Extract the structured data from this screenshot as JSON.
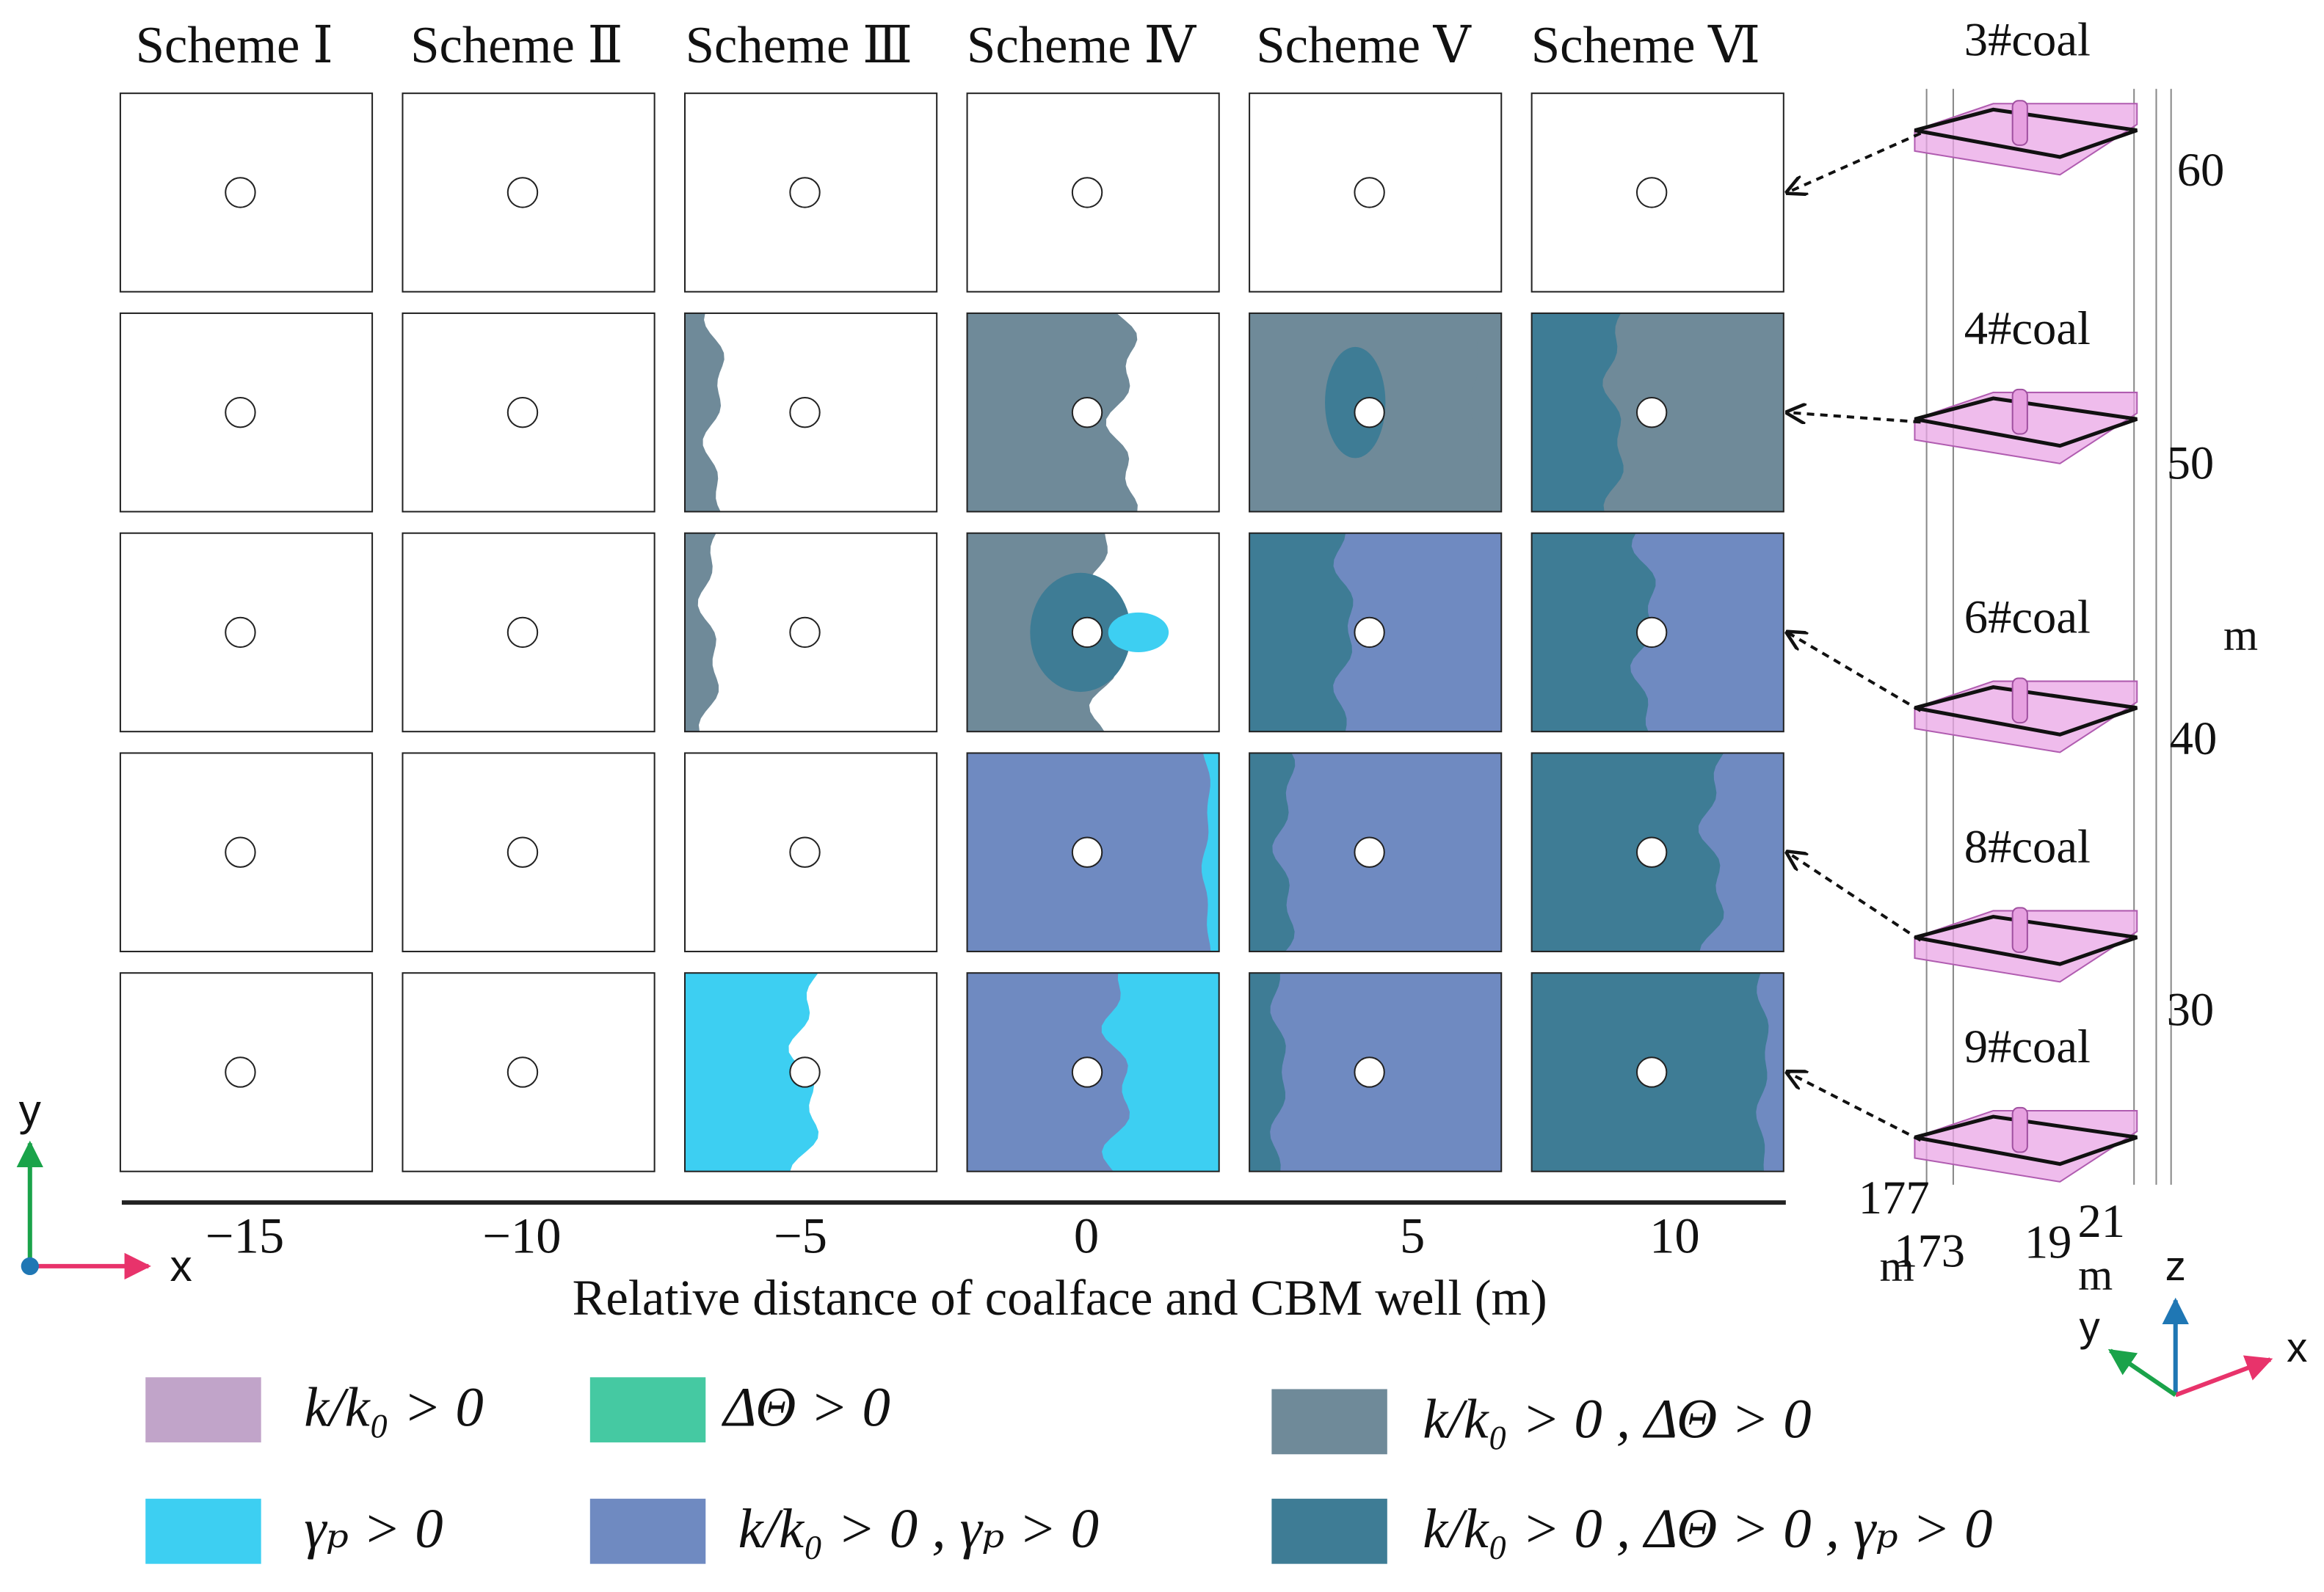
{
  "columns": [
    "Scheme Ⅰ",
    "Scheme Ⅱ",
    "Scheme Ⅲ",
    "Scheme Ⅳ",
    "Scheme Ⅴ",
    "Scheme Ⅵ"
  ],
  "x_axis": {
    "ticks": [
      "−15",
      "−10",
      "−5",
      "0",
      "5",
      "10"
    ],
    "label": "Relative distance of coalface and CBM well (m)"
  },
  "legend": [
    {
      "label": "k/k₀ > 0",
      "color": "#c1a4c9"
    },
    {
      "label": "ΔΘ > 0",
      "color": "#45c9a2"
    },
    {
      "label": "k/k₀ > 0 , ΔΘ > 0",
      "color": "#6f8a99"
    },
    {
      "label": "γₚ > 0",
      "color": "#3dcff2"
    },
    {
      "label": "k/k₀ > 0 ,  γₚ > 0",
      "color": "#6f8ac1"
    },
    {
      "label": "k/k₀ > 0 , ΔΘ > 0 , γₚ > 0",
      "color": "#3e7c95"
    }
  ],
  "model": {
    "seams": [
      "3#coal",
      "4#coal",
      "6#coal",
      "8#coal",
      "9#coal"
    ],
    "elevation_ticks": [
      "60",
      "50",
      "40",
      "30"
    ],
    "elevation_unit": "m",
    "bottom_ticks": [
      "177",
      "173",
      "19",
      "21"
    ],
    "bottom_units": [
      "m",
      "m"
    ],
    "axes": [
      "z",
      "y",
      "x"
    ]
  },
  "corner_axes": [
    "y",
    "x"
  ]
}
